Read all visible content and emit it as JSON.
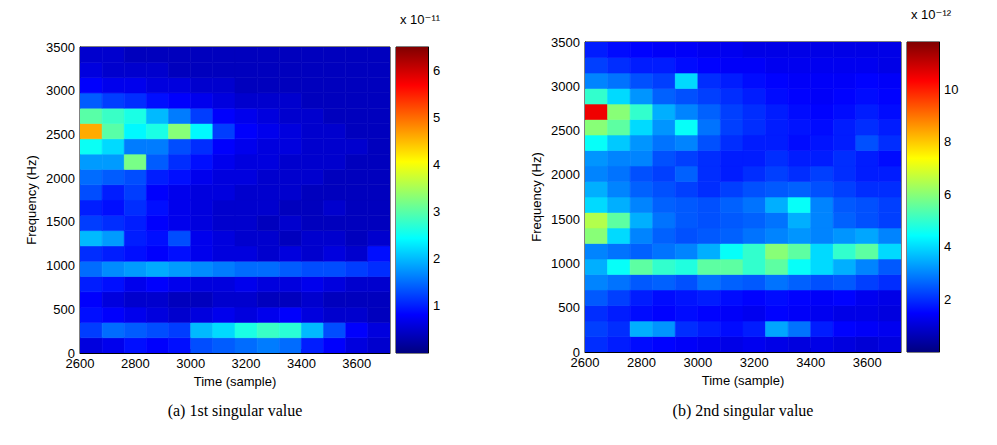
{
  "chart_data": [
    {
      "type": "heatmap",
      "title": "(a) 1st singular value",
      "x_label": "Time (sample)",
      "y_label": "Frequency (Hz)",
      "xlim": [
        2600,
        3720
      ],
      "xticks": [
        2600,
        2800,
        3000,
        3200,
        3400,
        3600
      ],
      "ylim": [
        0,
        3500
      ],
      "yticks": [
        0,
        500,
        1000,
        1500,
        2000,
        2500,
        3000,
        3500
      ],
      "color": "jet",
      "x_bins": [
        2600,
        2680,
        2760,
        2840,
        2920,
        3000,
        3080,
        3160,
        3240,
        3320,
        3400,
        3480,
        3560,
        3640,
        3720
      ],
      "y_bins": [
        0,
        175,
        350,
        525,
        700,
        875,
        1050,
        1225,
        1400,
        1575,
        1750,
        1925,
        2100,
        2275,
        2450,
        2625,
        2800,
        2975,
        3150,
        3325,
        3500
      ],
      "values": [
        [
          0.6,
          0.7,
          0.9,
          0.8,
          0.9,
          1.3,
          1.4,
          1.5,
          1.6,
          1.5,
          1.0,
          0.8,
          0.6,
          0.5
        ],
        [
          1.2,
          1.5,
          1.4,
          1.3,
          1.2,
          2.0,
          2.2,
          2.6,
          2.8,
          2.7,
          2.0,
          1.3,
          0.8,
          0.6
        ],
        [
          0.9,
          0.8,
          0.7,
          0.6,
          0.5,
          0.6,
          0.7,
          0.6,
          0.7,
          0.8,
          0.6,
          0.5,
          0.5,
          0.4
        ],
        [
          0.8,
          0.6,
          0.5,
          0.5,
          0.4,
          0.4,
          0.5,
          0.5,
          0.4,
          0.4,
          0.5,
          0.4,
          0.4,
          0.4
        ],
        [
          1.0,
          0.9,
          0.7,
          0.8,
          0.7,
          0.6,
          0.6,
          0.7,
          0.6,
          0.6,
          0.7,
          0.6,
          0.5,
          0.5
        ],
        [
          1.5,
          1.7,
          1.8,
          1.9,
          1.8,
          1.7,
          1.6,
          1.5,
          1.5,
          1.4,
          1.3,
          1.3,
          1.2,
          1.1
        ],
        [
          1.1,
          1.0,
          0.9,
          0.8,
          0.9,
          0.7,
          0.6,
          0.6,
          0.5,
          0.6,
          0.5,
          0.6,
          0.5,
          0.9
        ],
        [
          2.0,
          1.8,
          1.0,
          0.9,
          1.3,
          0.7,
          0.6,
          0.5,
          0.5,
          0.4,
          0.5,
          0.5,
          0.4,
          0.5
        ],
        [
          1.2,
          1.1,
          1.0,
          0.8,
          0.7,
          0.6,
          0.5,
          0.5,
          0.4,
          0.5,
          0.4,
          0.4,
          0.4,
          0.4
        ],
        [
          1.0,
          0.9,
          1.1,
          0.9,
          0.7,
          0.6,
          0.5,
          0.5,
          0.5,
          0.4,
          0.4,
          0.5,
          0.4,
          0.4
        ],
        [
          1.3,
          1.0,
          1.2,
          0.8,
          0.7,
          0.6,
          0.6,
          0.5,
          0.5,
          0.5,
          0.4,
          0.4,
          0.4,
          0.4
        ],
        [
          1.5,
          1.4,
          1.3,
          1.0,
          0.9,
          0.7,
          0.6,
          0.6,
          0.5,
          0.5,
          0.5,
          0.4,
          0.4,
          0.4
        ],
        [
          1.8,
          1.8,
          3.2,
          1.4,
          1.1,
          0.9,
          0.7,
          0.6,
          0.6,
          0.5,
          0.5,
          0.5,
          0.4,
          0.4
        ],
        [
          2.5,
          2.2,
          1.6,
          1.6,
          1.3,
          1.1,
          0.8,
          0.7,
          0.6,
          0.6,
          0.5,
          0.5,
          0.5,
          0.4
        ],
        [
          4.6,
          3.0,
          2.4,
          2.6,
          3.3,
          2.4,
          1.2,
          0.8,
          0.7,
          0.6,
          0.5,
          0.5,
          0.4,
          0.4
        ],
        [
          3.0,
          2.8,
          2.6,
          2.0,
          1.6,
          1.2,
          0.8,
          0.7,
          0.6,
          0.5,
          0.5,
          0.4,
          0.4,
          0.4
        ],
        [
          1.4,
          1.2,
          1.1,
          0.9,
          0.8,
          0.7,
          0.6,
          0.5,
          0.5,
          0.5,
          0.4,
          0.4,
          0.4,
          0.4
        ],
        [
          0.8,
          0.7,
          0.7,
          0.6,
          0.6,
          0.5,
          0.5,
          0.4,
          0.4,
          0.4,
          0.4,
          0.4,
          0.4,
          0.4
        ],
        [
          0.6,
          0.5,
          0.5,
          0.5,
          0.4,
          0.4,
          0.4,
          0.4,
          0.4,
          0.4,
          0.4,
          0.4,
          0.4,
          0.4
        ],
        [
          0.5,
          0.5,
          0.4,
          0.4,
          0.4,
          0.4,
          0.4,
          0.4,
          0.4,
          0.4,
          0.4,
          0.4,
          0.4,
          0.4
        ]
      ],
      "colorbar": {
        "range": [
          0,
          6.5
        ],
        "ticks": [
          1,
          2,
          3,
          4,
          5,
          6
        ],
        "label": "x 10⁻¹¹"
      }
    },
    {
      "type": "heatmap",
      "title": "(b) 2nd singular value",
      "x_label": "Time (sample)",
      "y_label": "Frequency (Hz)",
      "xlim": [
        2600,
        3720
      ],
      "xticks": [
        2600,
        2800,
        3000,
        3200,
        3400,
        3600
      ],
      "ylim": [
        0,
        3500
      ],
      "yticks": [
        0,
        500,
        1000,
        1500,
        2000,
        2500,
        3000,
        3500
      ],
      "color": "jet",
      "x_bins": [
        2600,
        2680,
        2760,
        2840,
        2920,
        3000,
        3080,
        3160,
        3240,
        3320,
        3400,
        3480,
        3560,
        3640,
        3720
      ],
      "y_bins": [
        0,
        175,
        350,
        525,
        700,
        875,
        1050,
        1225,
        1400,
        1575,
        1750,
        1925,
        2100,
        2275,
        2450,
        2625,
        2800,
        2975,
        3150,
        3325,
        3500
      ],
      "values": [
        [
          2.0,
          1.8,
          1.6,
          1.5,
          1.4,
          1.3,
          1.2,
          1.3,
          1.2,
          1.1,
          1.2,
          1.1,
          1.0,
          1.1
        ],
        [
          2.2,
          2.0,
          3.5,
          3.2,
          2.0,
          1.8,
          1.6,
          1.8,
          3.4,
          2.8,
          1.8,
          1.5,
          1.4,
          1.3
        ],
        [
          2.0,
          1.8,
          1.6,
          1.5,
          1.6,
          1.5,
          1.4,
          1.3,
          1.5,
          1.4,
          1.3,
          1.2,
          1.2,
          1.1
        ],
        [
          2.5,
          2.2,
          1.8,
          1.6,
          1.7,
          1.8,
          1.6,
          1.5,
          1.6,
          1.5,
          1.4,
          1.5,
          1.3,
          1.2
        ],
        [
          3.0,
          2.8,
          2.5,
          2.6,
          2.4,
          2.8,
          2.6,
          2.5,
          2.8,
          2.6,
          2.4,
          2.5,
          2.2,
          2.0
        ],
        [
          3.5,
          4.5,
          5.5,
          5.0,
          4.8,
          5.5,
          5.5,
          5.0,
          5.5,
          4.5,
          4.0,
          3.5,
          3.0,
          2.5
        ],
        [
          3.0,
          2.8,
          2.6,
          2.8,
          3.0,
          3.5,
          4.5,
          5.0,
          6.0,
          5.5,
          4.0,
          5.0,
          5.5,
          4.0
        ],
        [
          6.0,
          4.0,
          3.0,
          2.6,
          2.4,
          2.5,
          2.6,
          2.8,
          3.0,
          3.2,
          3.0,
          3.2,
          3.4,
          3.0
        ],
        [
          6.5,
          5.5,
          3.5,
          2.8,
          2.5,
          2.4,
          2.5,
          2.6,
          2.8,
          3.5,
          3.0,
          2.6,
          2.4,
          2.2
        ],
        [
          4.0,
          3.5,
          3.0,
          2.6,
          2.5,
          2.4,
          2.6,
          2.8,
          3.5,
          4.5,
          3.0,
          2.5,
          2.4,
          2.2
        ],
        [
          3.5,
          3.0,
          2.6,
          2.4,
          2.2,
          2.0,
          2.2,
          2.4,
          2.5,
          2.6,
          2.4,
          2.2,
          2.0,
          2.0
        ],
        [
          3.0,
          2.8,
          2.4,
          2.2,
          2.6,
          2.0,
          1.8,
          2.0,
          2.2,
          2.0,
          2.2,
          2.0,
          1.8,
          1.8
        ],
        [
          3.2,
          3.0,
          3.0,
          2.4,
          2.2,
          2.0,
          1.8,
          1.8,
          2.0,
          1.8,
          1.8,
          2.0,
          1.8,
          1.6
        ],
        [
          4.5,
          3.8,
          3.2,
          2.8,
          3.0,
          2.4,
          2.0,
          1.8,
          1.8,
          1.6,
          1.7,
          1.8,
          2.4,
          2.0
        ],
        [
          6.0,
          5.5,
          4.0,
          3.2,
          4.5,
          2.8,
          2.2,
          2.0,
          1.8,
          1.7,
          1.6,
          1.8,
          2.0,
          1.8
        ],
        [
          10.5,
          6.0,
          5.0,
          3.5,
          3.0,
          2.6,
          2.2,
          2.0,
          1.8,
          1.6,
          1.5,
          1.6,
          1.8,
          1.6
        ],
        [
          5.0,
          4.0,
          3.2,
          2.6,
          2.4,
          2.2,
          2.0,
          1.8,
          1.6,
          1.5,
          1.4,
          1.5,
          1.6,
          1.5
        ],
        [
          3.0,
          2.8,
          2.4,
          2.2,
          4.0,
          2.0,
          1.8,
          1.6,
          1.5,
          1.4,
          1.4,
          1.4,
          1.5,
          1.4
        ],
        [
          2.2,
          2.0,
          1.8,
          1.8,
          1.6,
          1.5,
          1.4,
          1.4,
          1.3,
          1.3,
          1.3,
          1.3,
          1.3,
          1.2
        ],
        [
          1.8,
          1.6,
          1.5,
          1.4,
          1.4,
          1.3,
          1.3,
          1.2,
          1.2,
          1.2,
          1.2,
          1.2,
          1.2,
          1.2
        ]
      ],
      "colorbar": {
        "range": [
          0,
          11.8
        ],
        "ticks": [
          2,
          4,
          6,
          8,
          10
        ],
        "label": "x 10⁻¹²"
      }
    }
  ]
}
